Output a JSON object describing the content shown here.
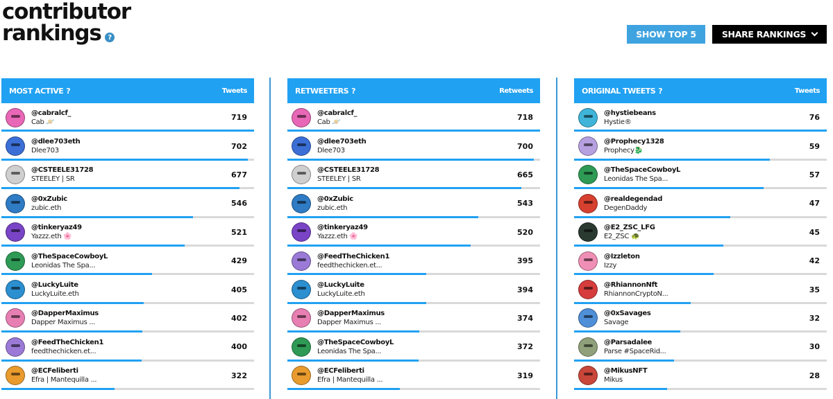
{
  "header": {
    "title_line1": "contributor",
    "title_line2": "rankings",
    "help_glyph": "?"
  },
  "buttons": {
    "show_top": "SHOW TOP 5",
    "share": "SHARE RANKINGS"
  },
  "colors": {
    "accent": "#20a1f2",
    "button_blue": "#3fa3e0",
    "button_dark": "#000000",
    "bar_track": "#d9d9d9"
  },
  "panels": [
    {
      "title": "MOST ACTIVE",
      "help": "?",
      "metric": "Tweets",
      "rows": [
        {
          "handle": "@cabralcf_",
          "name": "Cab 🪐",
          "count": "719",
          "fill": 1.0,
          "avatar": "#e867b6",
          "icon": "avatar-icon"
        },
        {
          "handle": "@dlee703eth",
          "name": "Dlee703",
          "count": "702",
          "fill": 0.976,
          "avatar": "#3b6fd6",
          "icon": "avatar-icon"
        },
        {
          "handle": "@CSTEELE31728",
          "name": "STEELEY | SR",
          "count": "677",
          "fill": 0.942,
          "avatar": "#cfcfcf",
          "icon": "avatar-icon"
        },
        {
          "handle": "@0xZubic",
          "name": "zubic.eth",
          "count": "546",
          "fill": 0.759,
          "avatar": "#2f7bc4",
          "icon": "avatar-icon"
        },
        {
          "handle": "@tinkeryaz49",
          "name": "Yazzz.eth 🌸",
          "count": "521",
          "fill": 0.725,
          "avatar": "#7a44c6",
          "icon": "avatar-icon"
        },
        {
          "handle": "@TheSpaceCowboyL",
          "name": "Leonidas The Spa...",
          "count": "429",
          "fill": 0.597,
          "avatar": "#2e9a55",
          "icon": "avatar-icon"
        },
        {
          "handle": "@LuckyLuite",
          "name": "LuckyLuite.eth",
          "count": "405",
          "fill": 0.563,
          "avatar": "#2b8fd0",
          "icon": "avatar-icon"
        },
        {
          "handle": "@DapperMaximus",
          "name": "Dapper Maximus ...",
          "count": "402",
          "fill": 0.559,
          "avatar": "#e77fb3",
          "icon": "avatar-icon"
        },
        {
          "handle": "@FeedTheChicken1",
          "name": "feedthechicken.et...",
          "count": "400",
          "fill": 0.556,
          "avatar": "#9a7ad6",
          "icon": "avatar-icon"
        },
        {
          "handle": "@ECFeliberti",
          "name": "Efra | Mantequilla ...",
          "count": "322",
          "fill": 0.448,
          "avatar": "#e99b2d",
          "icon": "avatar-icon"
        }
      ]
    },
    {
      "title": "RETWEETERS",
      "help": "?",
      "metric": "Retweets",
      "rows": [
        {
          "handle": "@cabralcf_",
          "name": "Cab 🪐",
          "count": "718",
          "fill": 1.0,
          "avatar": "#e867b6",
          "icon": "avatar-icon"
        },
        {
          "handle": "@dlee703eth",
          "name": "Dlee703",
          "count": "700",
          "fill": 0.975,
          "avatar": "#3b6fd6",
          "icon": "avatar-icon"
        },
        {
          "handle": "@CSTEELE31728",
          "name": "STEELEY | SR",
          "count": "665",
          "fill": 0.926,
          "avatar": "#cfcfcf",
          "icon": "avatar-icon"
        },
        {
          "handle": "@0xZubic",
          "name": "zubic.eth",
          "count": "543",
          "fill": 0.756,
          "avatar": "#2f7bc4",
          "icon": "avatar-icon"
        },
        {
          "handle": "@tinkeryaz49",
          "name": "Yazzz.eth 🌸",
          "count": "520",
          "fill": 0.724,
          "avatar": "#7a44c6",
          "icon": "avatar-icon"
        },
        {
          "handle": "@FeedTheChicken1",
          "name": "feedthechicken.et...",
          "count": "395",
          "fill": 0.55,
          "avatar": "#9a7ad6",
          "icon": "avatar-icon"
        },
        {
          "handle": "@LuckyLuite",
          "name": "LuckyLuite.eth",
          "count": "394",
          "fill": 0.549,
          "avatar": "#2b8fd0",
          "icon": "avatar-icon"
        },
        {
          "handle": "@DapperMaximus",
          "name": "Dapper Maximus ...",
          "count": "374",
          "fill": 0.521,
          "avatar": "#e77fb3",
          "icon": "avatar-icon"
        },
        {
          "handle": "@TheSpaceCowboyL",
          "name": "Leonidas The Spa...",
          "count": "372",
          "fill": 0.518,
          "avatar": "#2e9a55",
          "icon": "avatar-icon"
        },
        {
          "handle": "@ECFeliberti",
          "name": "Efra | Mantequilla ...",
          "count": "319",
          "fill": 0.444,
          "avatar": "#e99b2d",
          "icon": "avatar-icon"
        }
      ]
    },
    {
      "title": "ORIGINAL TWEETS",
      "help": "?",
      "metric": "Tweets",
      "rows": [
        {
          "handle": "@hystiebeans",
          "name": "Hystie®",
          "count": "76",
          "fill": 1.0,
          "avatar": "#3fb4d8",
          "icon": "avatar-icon"
        },
        {
          "handle": "@Prophecy1328",
          "name": "Prophecy🐉",
          "count": "59",
          "fill": 0.776,
          "avatar": "#b7a0e0",
          "icon": "avatar-icon"
        },
        {
          "handle": "@TheSpaceCowboyL",
          "name": "Leonidas The Spa...",
          "count": "57",
          "fill": 0.75,
          "avatar": "#2e9a55",
          "icon": "avatar-icon"
        },
        {
          "handle": "@realdegendad",
          "name": "DegenDaddy",
          "count": "47",
          "fill": 0.618,
          "avatar": "#d6402f",
          "icon": "avatar-icon"
        },
        {
          "handle": "@E2_ZSC_LFG",
          "name": "E2_ZSC 🐢",
          "count": "45",
          "fill": 0.592,
          "avatar": "#2a3a30",
          "icon": "avatar-icon"
        },
        {
          "handle": "@Izzleton",
          "name": "Izzy",
          "count": "42",
          "fill": 0.553,
          "avatar": "#f08fb5",
          "icon": "avatar-icon"
        },
        {
          "handle": "@RhiannonNft",
          "name": "RhiannonCryptoN...",
          "count": "35",
          "fill": 0.461,
          "avatar": "#d63c3c",
          "icon": "avatar-icon"
        },
        {
          "handle": "@0xSavages",
          "name": "Savage",
          "count": "32",
          "fill": 0.421,
          "avatar": "#4f8fd8",
          "icon": "avatar-icon"
        },
        {
          "handle": "@Parsadalee",
          "name": "Parse #SpaceRid...",
          "count": "30",
          "fill": 0.395,
          "avatar": "#8fa07a",
          "icon": "avatar-icon"
        },
        {
          "handle": "@MikusNFT",
          "name": "Mikus",
          "count": "28",
          "fill": 0.368,
          "avatar": "#c8463a",
          "icon": "avatar-icon"
        }
      ]
    }
  ]
}
